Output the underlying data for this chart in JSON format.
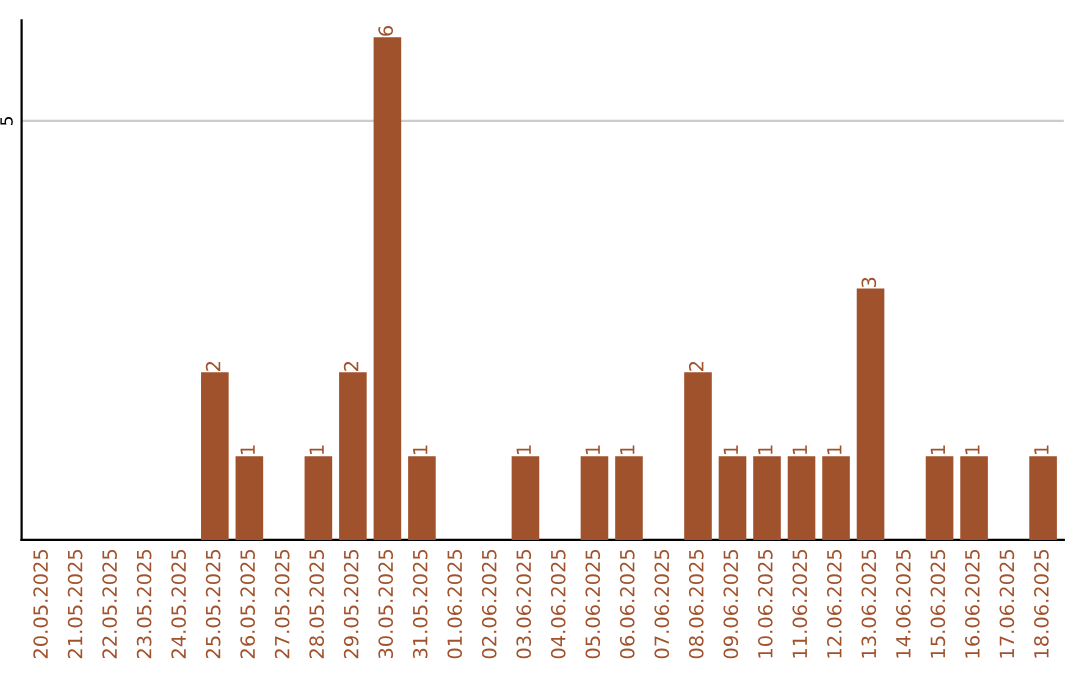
{
  "chart_data": {
    "type": "bar",
    "categories": [
      "20.05.2025",
      "21.05.2025",
      "22.05.2025",
      "23.05.2025",
      "24.05.2025",
      "25.05.2025",
      "26.05.2025",
      "27.05.2025",
      "28.05.2025",
      "29.05.2025",
      "30.05.2025",
      "31.05.2025",
      "01.06.2025",
      "02.06.2025",
      "03.06.2025",
      "04.06.2025",
      "05.06.2025",
      "06.06.2025",
      "07.06.2025",
      "08.06.2025",
      "09.06.2025",
      "10.06.2025",
      "11.06.2025",
      "12.06.2025",
      "13.06.2025",
      "14.06.2025",
      "15.06.2025",
      "16.06.2025",
      "17.06.2025",
      "18.06.2025"
    ],
    "values": [
      0,
      0,
      0,
      0,
      0,
      2,
      1,
      0,
      1,
      2,
      6,
      1,
      0,
      0,
      1,
      0,
      1,
      1,
      0,
      2,
      1,
      1,
      1,
      1,
      3,
      0,
      1,
      1,
      0,
      1
    ],
    "value_labels": [
      null,
      null,
      null,
      null,
      null,
      "2",
      "1",
      null,
      "1",
      "2",
      "6",
      "1",
      null,
      null,
      "1",
      null,
      "1",
      "1",
      null,
      "2",
      "1",
      "1",
      "1",
      "1",
      "3",
      null,
      "1",
      "1",
      null,
      "1"
    ],
    "color": "#a0522d",
    "ylim": [
      0,
      6.2
    ],
    "yticks": [
      5
    ],
    "grid": "y",
    "legend": false
  }
}
